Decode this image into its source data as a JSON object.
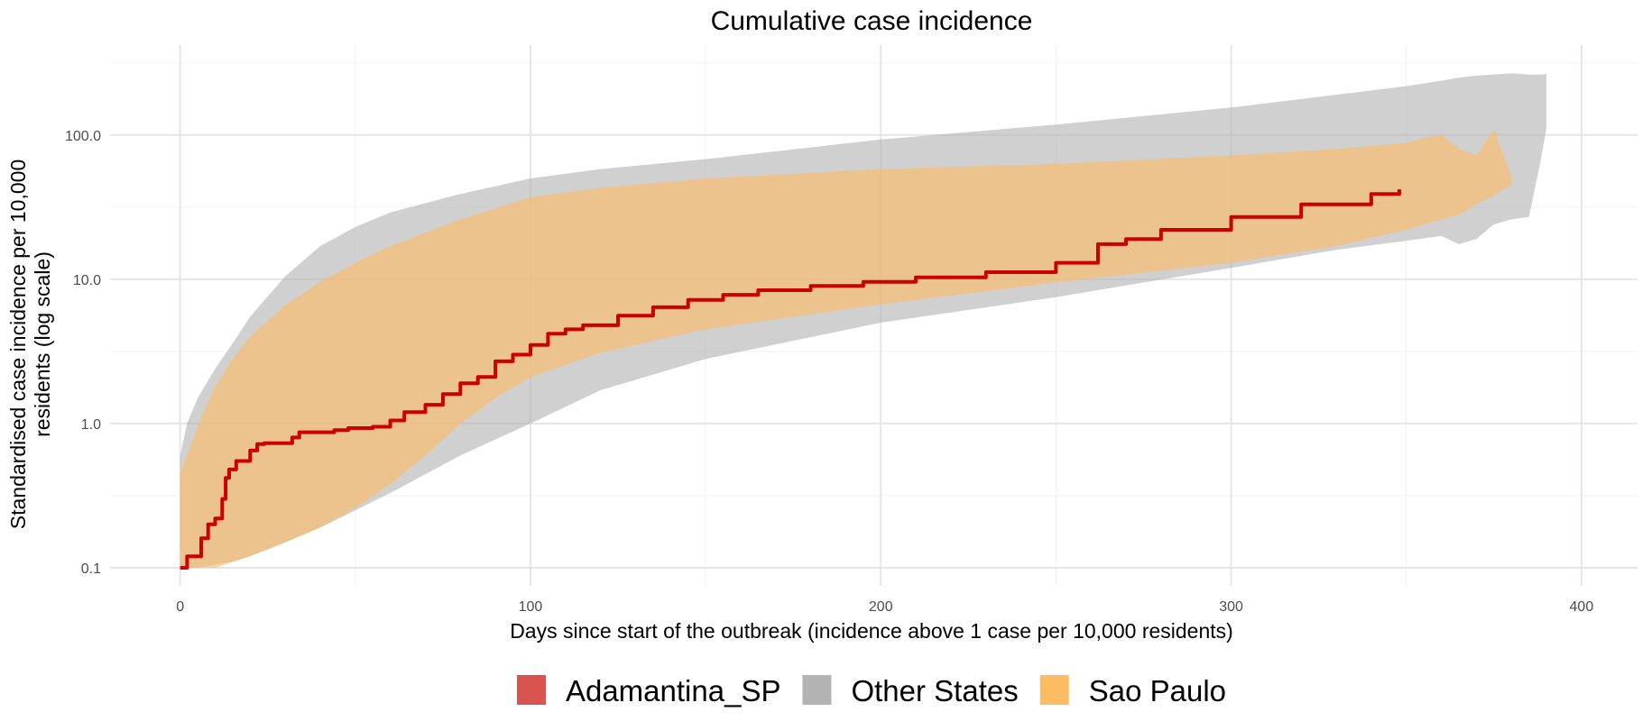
{
  "chart_data": {
    "type": "area",
    "title": "Cumulative case incidence",
    "xlabel": "Days since start of the outbreak (incidence above 1 case per 10,000 residents)",
    "ylabel_lines": [
      "Standardised case incidence per 10,000",
      "residents (log scale)"
    ],
    "x_scale": "linear",
    "y_scale": "log10",
    "xlim": [
      -20,
      416
    ],
    "ylim": [
      0.075,
      420
    ],
    "grid": true,
    "legend_position": "bottom",
    "x_ticks": [
      0,
      100,
      200,
      300,
      400
    ],
    "x_tick_labels": [
      "0",
      "100",
      "200",
      "300",
      "400"
    ],
    "y_ticks": [
      0.1,
      1,
      10,
      100
    ],
    "y_tick_labels": [
      "0.1",
      "1.0",
      "10.0",
      "100.0"
    ],
    "series": [
      {
        "name": "Other States",
        "kind": "ribbon",
        "color": "#b3b3b3",
        "opacity": 0.62,
        "x": [
          0,
          2,
          5,
          10,
          15,
          20,
          30,
          40,
          50,
          60,
          80,
          100,
          120,
          150,
          200,
          250,
          300,
          330,
          350,
          360,
          365,
          370,
          375,
          380,
          385,
          388,
          390
        ],
        "upper": [
          0.6,
          1.0,
          1.5,
          2.4,
          3.6,
          5.5,
          10.5,
          17,
          23,
          29,
          39,
          50,
          58,
          68,
          93,
          118,
          155,
          190,
          218,
          238,
          250,
          258,
          262,
          268,
          262,
          262,
          264
        ],
        "lower": [
          0.1,
          0.1,
          0.1,
          0.105,
          0.11,
          0.12,
          0.15,
          0.19,
          0.25,
          0.33,
          0.6,
          1.0,
          1.7,
          2.8,
          5.0,
          7.5,
          12,
          16,
          18.5,
          20,
          17.5,
          19,
          24,
          26,
          27,
          60,
          110
        ]
      },
      {
        "name": "Sao Paulo",
        "kind": "ribbon",
        "color": "#fdbb62",
        "opacity": 0.62,
        "x": [
          0,
          3,
          6,
          10,
          15,
          20,
          30,
          40,
          50,
          60,
          70,
          80,
          90,
          100,
          120,
          150,
          200,
          250,
          300,
          330,
          350,
          355,
          360,
          365,
          370,
          375,
          380
        ],
        "upper": [
          0.45,
          0.7,
          1.1,
          1.8,
          2.8,
          4.0,
          6.6,
          9.6,
          13,
          17,
          21,
          26,
          31,
          37,
          43,
          50,
          58,
          63,
          72,
          80,
          88,
          95,
          100,
          80,
          72,
          110,
          52
        ],
        "lower": [
          0.1,
          0.1,
          0.1,
          0.1,
          0.11,
          0.12,
          0.15,
          0.19,
          0.26,
          0.38,
          0.6,
          1.0,
          1.5,
          2.1,
          3.1,
          4.5,
          6.7,
          9.5,
          13,
          17,
          22,
          24,
          26,
          28,
          33,
          38,
          45
        ]
      },
      {
        "name": "Adamantina_SP",
        "kind": "line",
        "color": "#cc0000",
        "legend_color": "#d9534f",
        "x": [
          0,
          2,
          4,
          6,
          8,
          10,
          12,
          13,
          14,
          16,
          20,
          22,
          24,
          28,
          32,
          34,
          38,
          44,
          48,
          55,
          60,
          64,
          70,
          75,
          80,
          85,
          90,
          95,
          100,
          105,
          110,
          115,
          125,
          135,
          145,
          155,
          165,
          180,
          195,
          210,
          230,
          250,
          262,
          270,
          280,
          300,
          320,
          340,
          348
        ],
        "y": [
          0.1,
          0.12,
          0.12,
          0.16,
          0.2,
          0.22,
          0.3,
          0.42,
          0.48,
          0.55,
          0.65,
          0.72,
          0.73,
          0.73,
          0.8,
          0.87,
          0.87,
          0.9,
          0.93,
          0.95,
          1.05,
          1.2,
          1.35,
          1.6,
          1.9,
          2.1,
          2.7,
          3.0,
          3.5,
          4.2,
          4.5,
          4.8,
          5.6,
          6.4,
          7.2,
          7.8,
          8.4,
          9.0,
          9.6,
          10.3,
          11.2,
          13,
          17.5,
          19,
          22,
          27,
          33,
          39,
          42
        ]
      }
    ],
    "legend": [
      {
        "label": "Adamantina_SP",
        "color": "#d9534f"
      },
      {
        "label": "Other States",
        "color": "#b3b3b3"
      },
      {
        "label": "Sao Paulo",
        "color": "#fdbb62"
      }
    ]
  }
}
